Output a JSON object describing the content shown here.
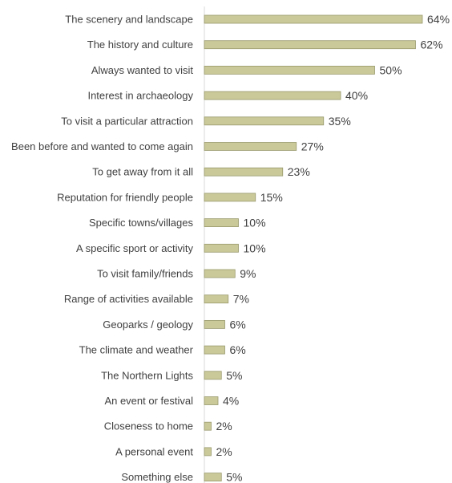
{
  "chart_data": {
    "type": "bar",
    "orientation": "horizontal",
    "title": "",
    "xlabel": "",
    "ylabel": "",
    "xlim": [
      0,
      64
    ],
    "grid": false,
    "legend": "none",
    "bar_color": "#c9c999",
    "categories": [
      "The scenery and landscape",
      "The history and culture",
      "Always wanted to visit",
      "Interest in archaeology",
      "To visit a particular attraction",
      "Been before and wanted to come again",
      "To get away from it all",
      "Reputation for friendly people",
      "Specific towns/villages",
      "A specific sport or activity",
      "To visit family/friends",
      "Range of activities available",
      "Geoparks / geology",
      "The climate and weather",
      "The Northern Lights",
      "An event or festival",
      "Closeness to home",
      "A personal event",
      "Something else"
    ],
    "values": [
      64,
      62,
      50,
      40,
      35,
      27,
      23,
      15,
      10,
      10,
      9,
      7,
      6,
      6,
      5,
      4,
      2,
      2,
      5
    ],
    "value_labels": [
      "64%",
      "62%",
      "50%",
      "40%",
      "35%",
      "27%",
      "23%",
      "15%",
      "10%",
      "10%",
      "9%",
      "7%",
      "6%",
      "6%",
      "5%",
      "4%",
      "2%",
      "2%",
      "5%"
    ]
  }
}
